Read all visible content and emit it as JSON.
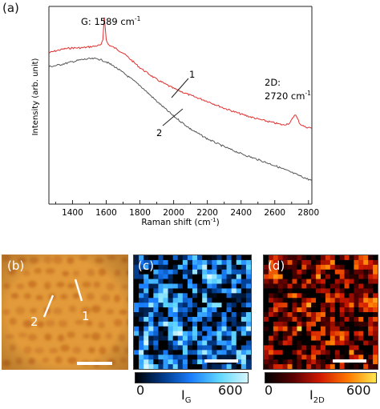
{
  "panel_labels": {
    "a": "(a)",
    "b": "(b)",
    "c": "(c)",
    "d": "(d)"
  },
  "chart_data": {
    "type": "line",
    "xlabel": "Raman shift (cm",
    "xlabel_sup": "-1",
    "xlabel_tail": ")",
    "ylabel": "Intensity (arb. unit)",
    "xlim": [
      1260,
      2820
    ],
    "x_ticks": [
      1400,
      1600,
      1800,
      2000,
      2200,
      2400,
      2600,
      2800
    ],
    "ylim": [
      0,
      1
    ],
    "y_ticks_labeled": false,
    "grid": false,
    "series": [
      {
        "name": "1",
        "color": "#e03030",
        "x": [
          1260,
          1300,
          1350,
          1400,
          1450,
          1500,
          1540,
          1570,
          1580,
          1585,
          1589,
          1594,
          1600,
          1610,
          1625,
          1650,
          1700,
          1800,
          1900,
          2000,
          2100,
          2200,
          2300,
          2400,
          2500,
          2600,
          2650,
          2690,
          2710,
          2720,
          2730,
          2750,
          2780,
          2820
        ],
        "y": [
          0.765,
          0.775,
          0.785,
          0.79,
          0.79,
          0.795,
          0.8,
          0.805,
          0.83,
          0.9,
          0.945,
          0.9,
          0.83,
          0.81,
          0.8,
          0.79,
          0.765,
          0.69,
          0.63,
          0.585,
          0.55,
          0.52,
          0.485,
          0.455,
          0.43,
          0.41,
          0.4,
          0.41,
          0.44,
          0.455,
          0.44,
          0.405,
          0.39,
          0.385
        ]
      },
      {
        "name": "2",
        "color": "#555555",
        "x": [
          1260,
          1300,
          1350,
          1400,
          1450,
          1500,
          1550,
          1600,
          1650,
          1700,
          1800,
          1900,
          2000,
          2100,
          2200,
          2300,
          2400,
          2500,
          2600,
          2700,
          2800,
          2820
        ],
        "y": [
          0.695,
          0.7,
          0.71,
          0.72,
          0.73,
          0.735,
          0.735,
          0.72,
          0.695,
          0.665,
          0.6,
          0.52,
          0.445,
          0.38,
          0.33,
          0.29,
          0.255,
          0.225,
          0.195,
          0.16,
          0.125,
          0.12
        ]
      }
    ],
    "annotations": [
      {
        "id": "g",
        "text": "G: 1589 cm",
        "sup": "-1"
      },
      {
        "id": "twod_a",
        "text": "2D:"
      },
      {
        "id": "twod_b",
        "text": "2720 cm",
        "sup": "-1"
      },
      {
        "id": "l1",
        "text": "1"
      },
      {
        "id": "l2",
        "text": "2"
      }
    ]
  },
  "optical": {
    "background": "#e29a3a",
    "labels": {
      "one": "1",
      "two": "2"
    }
  },
  "maps": {
    "ig": {
      "label": "I",
      "sub": "G",
      "min": "0",
      "max": "600",
      "colors": [
        "#000000",
        "#003a8a",
        "#1a7fff",
        "#5fd8ff",
        "#d8f6ff"
      ]
    },
    "i2d": {
      "label": "I",
      "sub": "2D",
      "min": "0",
      "max": "600",
      "colors": [
        "#000000",
        "#5a0000",
        "#d21a00",
        "#ff7a00",
        "#ffe850"
      ]
    }
  }
}
